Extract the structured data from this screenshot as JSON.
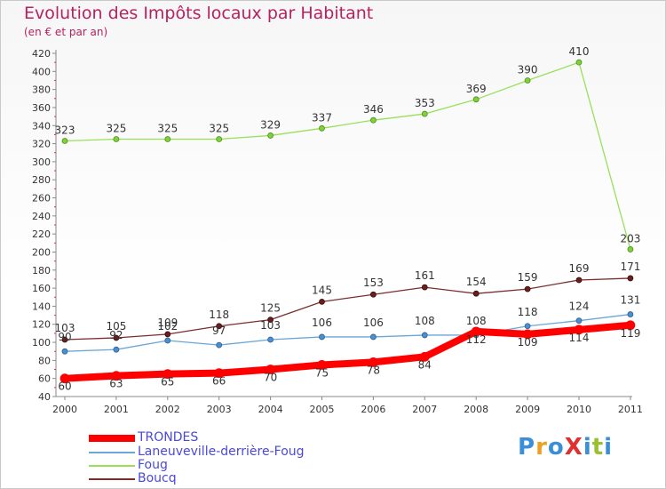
{
  "title": "Evolution des Impôts locaux par Habitant",
  "subtitle": "(en € et par an)",
  "logo_text": "ProXiti",
  "chart_data": {
    "type": "line",
    "x": [
      "2000",
      "2001",
      "2002",
      "2003",
      "2004",
      "2005",
      "2006",
      "2007",
      "2008",
      "2009",
      "2010",
      "2011"
    ],
    "ylim": [
      40,
      420
    ],
    "yticks": [
      40,
      60,
      80,
      100,
      120,
      140,
      160,
      180,
      200,
      220,
      240,
      260,
      280,
      300,
      320,
      340,
      360,
      380,
      400,
      420
    ],
    "grid": false,
    "legend_position": "bottom-left",
    "series": [
      {
        "name": "TRONDES",
        "color": "#ff0000",
        "values": [
          60,
          63,
          65,
          66,
          70,
          75,
          78,
          84,
          112,
          109,
          114,
          119
        ]
      },
      {
        "name": "Laneuveville-derrière-Foug",
        "color": "#6aa6d6",
        "values": [
          90,
          92,
          102,
          97,
          103,
          106,
          106,
          108,
          108,
          118,
          124,
          131
        ]
      },
      {
        "name": "Foug",
        "color": "#99e05a",
        "values": [
          323,
          325,
          325,
          325,
          329,
          337,
          346,
          353,
          369,
          390,
          410,
          203
        ]
      },
      {
        "name": "Boucq",
        "color": "#7a2e2e",
        "values": [
          103,
          105,
          109,
          118,
          125,
          145,
          153,
          161,
          154,
          159,
          169,
          171
        ]
      }
    ]
  }
}
